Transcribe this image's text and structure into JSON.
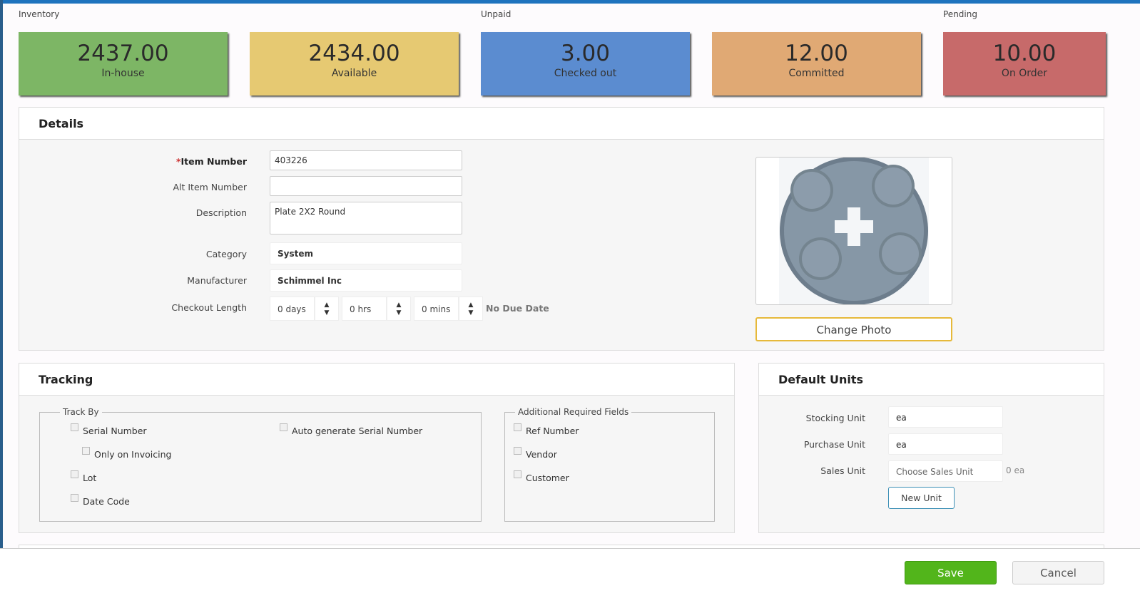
{
  "groups": {
    "inventory": "Inventory",
    "unpaid": "Unpaid",
    "pending": "Pending"
  },
  "cards": [
    {
      "value": "2437.00",
      "label": "In-house",
      "color": "#7db665"
    },
    {
      "value": "2434.00",
      "label": "Available",
      "color": "#e6c972"
    },
    {
      "value": "3.00",
      "label": "Checked out",
      "color": "#5b8cd0"
    },
    {
      "value": "12.00",
      "label": "Committed",
      "color": "#e0a974"
    },
    {
      "value": "10.00",
      "label": "On Order",
      "color": "#c76a6a"
    }
  ],
  "details": {
    "title": "Details",
    "required_mark": "*",
    "item_number_label": "Item Number",
    "item_number": "403226",
    "alt_item_label": "Alt Item Number",
    "alt_item": "",
    "description_label": "Description",
    "description": "Plate 2X2 Round",
    "category_label": "Category",
    "category": "System",
    "manufacturer_label": "Manufacturer",
    "manufacturer": "Schimmel Inc",
    "checkout_label": "Checkout Length",
    "days": "0 days",
    "hrs": "0 hrs",
    "mins": "0 mins",
    "no_due": "No Due Date",
    "change_photo": "Change Photo"
  },
  "tracking": {
    "title": "Tracking",
    "track_by": "Track By",
    "serial": "Serial Number",
    "only_invoicing": "Only on Invoicing",
    "lot": "Lot",
    "date_code": "Date Code",
    "auto_serial": "Auto generate Serial Number",
    "additional": "Additional Required Fields",
    "ref": "Ref Number",
    "vendor": "Vendor",
    "customer": "Customer"
  },
  "units": {
    "title": "Default Units",
    "stocking_label": "Stocking Unit",
    "stocking": "ea",
    "purchase_label": "Purchase Unit",
    "purchase": "ea",
    "sales_label": "Sales Unit",
    "sales_placeholder": "Choose Sales Unit",
    "sales_qty": "0 ea",
    "new_unit": "New Unit"
  },
  "footer": {
    "save": "Save",
    "cancel": "Cancel"
  }
}
